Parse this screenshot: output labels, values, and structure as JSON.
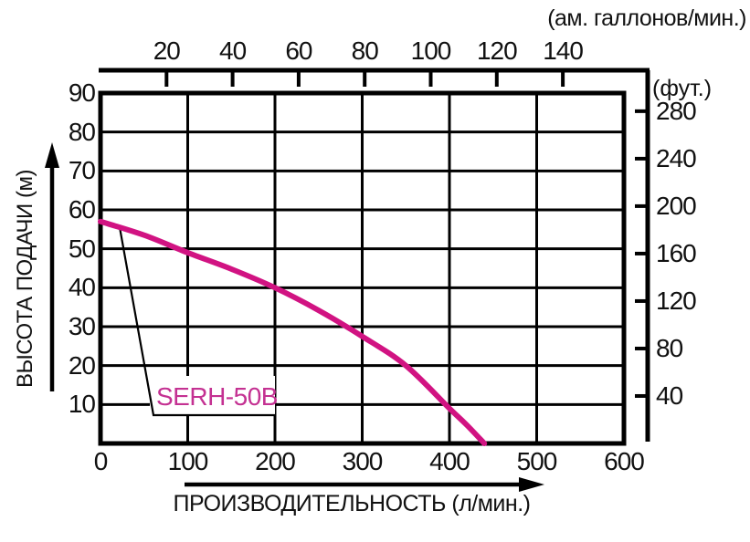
{
  "chart_data": {
    "type": "line",
    "title": "",
    "legend": "none",
    "grid": true,
    "series": [
      {
        "name": "SERH-50B",
        "color": "#d11382",
        "x_l_min": [
          0,
          50,
          100,
          150,
          200,
          250,
          300,
          350,
          400,
          420,
          440
        ],
        "y_m": [
          57,
          53.5,
          49,
          44.8,
          40,
          34.2,
          27.5,
          20,
          9,
          4.7,
          0
        ]
      }
    ],
    "axes": {
      "bottom": {
        "title": "ПРОИЗВОДИТЕЛЬНОСТЬ (л/мин.)",
        "unit": "л/мин.",
        "range": [
          0,
          600
        ],
        "ticks": [
          0,
          100,
          200,
          300,
          400,
          500,
          600
        ]
      },
      "left": {
        "title": "ВЫСОТА ПОДАЧИ (м)",
        "unit": "м",
        "range": [
          0,
          90
        ],
        "ticks": [
          90,
          80,
          70,
          60,
          50,
          40,
          30,
          20,
          10
        ]
      },
      "top": {
        "title": "(ам. галлонов/мин.)",
        "unit": "ам. галлонов/мин.",
        "ticks": [
          20,
          40,
          60,
          80,
          100,
          120,
          140
        ]
      },
      "right": {
        "title": "(фут.)",
        "unit": "фут.",
        "ticks": [
          280,
          240,
          200,
          160,
          120,
          80,
          40
        ]
      }
    },
    "annotation": {
      "text": "SERH-50B",
      "color": "#c43192"
    }
  },
  "colors": {
    "curve": "#d11382",
    "annotation_text": "#c43192",
    "axis": "#000000",
    "background": "#ffffff"
  }
}
